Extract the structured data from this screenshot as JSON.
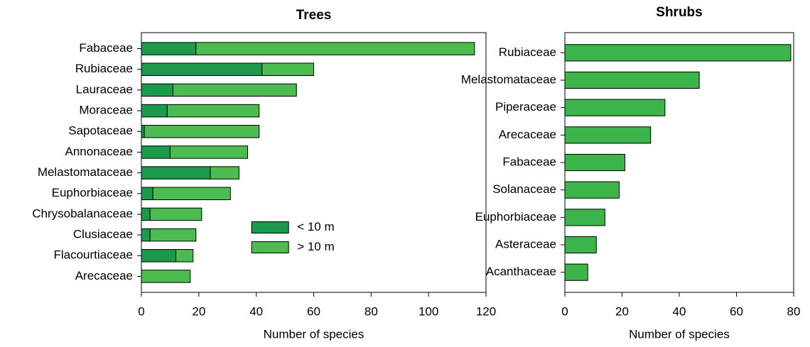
{
  "chart_data": [
    {
      "type": "bar",
      "orientation": "horizontal",
      "stacked": true,
      "title": "Trees",
      "categories": [
        "Fabaceae",
        "Rubiaceae",
        "Lauraceae",
        "Moraceae",
        "Sapotaceae",
        "Annonaceae",
        "Melastomataceae",
        "Euphorbiaceae",
        "Chrysobalanaceae",
        "Clusiaceae",
        "Flacourtiaceae",
        "Arecaceae"
      ],
      "series": [
        {
          "name": "< 10 m",
          "color": "#1a9a4a",
          "values": [
            19,
            42,
            11,
            9,
            1,
            10,
            24,
            4,
            3,
            3,
            12,
            0
          ]
        },
        {
          "name": "> 10 m",
          "color": "#4cbb50",
          "values": [
            97,
            18,
            43,
            32,
            40,
            27,
            10,
            27,
            18,
            16,
            6,
            17
          ]
        }
      ],
      "xlim": [
        0,
        120
      ],
      "xticks": [
        0,
        20,
        40,
        60,
        80,
        100,
        120
      ],
      "xlabel": "Number of species",
      "legend": "center"
    },
    {
      "type": "bar",
      "orientation": "horizontal",
      "title": "Shrubs",
      "categories": [
        "Rubiaceae",
        "Melastomataceae",
        "Piperaceae",
        "Arecaceae",
        "Fabaceae",
        "Solanaceae",
        "Euphorbiaceae",
        "Asteraceae",
        "Acanthaceae"
      ],
      "values": [
        79,
        47,
        35,
        30,
        21,
        19,
        14,
        11,
        8
      ],
      "color": "#3bb54a",
      "xlim": [
        0,
        80
      ],
      "xticks": [
        0,
        20,
        40,
        60,
        80
      ],
      "xlabel": "Number of species"
    }
  ]
}
